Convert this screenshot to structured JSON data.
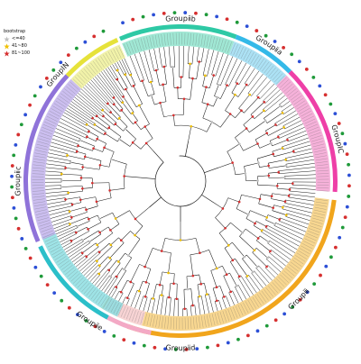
{
  "legend": {
    "title": "bootstrap",
    "items": [
      {
        "label": "<=40",
        "color": "#bfbfbf",
        "icon": "star-icon"
      },
      {
        "label": "41~80",
        "color": "#f0c000",
        "icon": "star-icon"
      },
      {
        "label": "81~100",
        "color": "#d62f2f",
        "icon": "star-icon"
      }
    ]
  },
  "groups": [
    {
      "label": "Groupⅱb",
      "color": "#2ec9a5",
      "fill": "#8fe3cd"
    },
    {
      "label": "Groupⅱa",
      "color": "#34b9e8",
      "fill": "#9edcf2"
    },
    {
      "label": "GroupⅠC",
      "color": "#ee3fa7",
      "fill": "#f3a3d2"
    },
    {
      "label": "Groupⅲ",
      "color": "#f1a51c",
      "fill": "#f6cf7d"
    },
    {
      "label": "Groupⅱd",
      "color": "#f3a9c5",
      "fill": "#f8d3e1"
    },
    {
      "label": "Groupⅱe",
      "color": "#2bbfc9",
      "fill": "#8ddee2"
    },
    {
      "label": "Groupⅱc",
      "color": "#8f73d9",
      "fill": "#c2b3ec"
    },
    {
      "label": "GroupⅠN",
      "color": "#e6e23a",
      "fill": "#eff09a"
    }
  ],
  "dot_colors": [
    "#2c4fd6",
    "#d62f2f",
    "#1f9a3a"
  ]
}
